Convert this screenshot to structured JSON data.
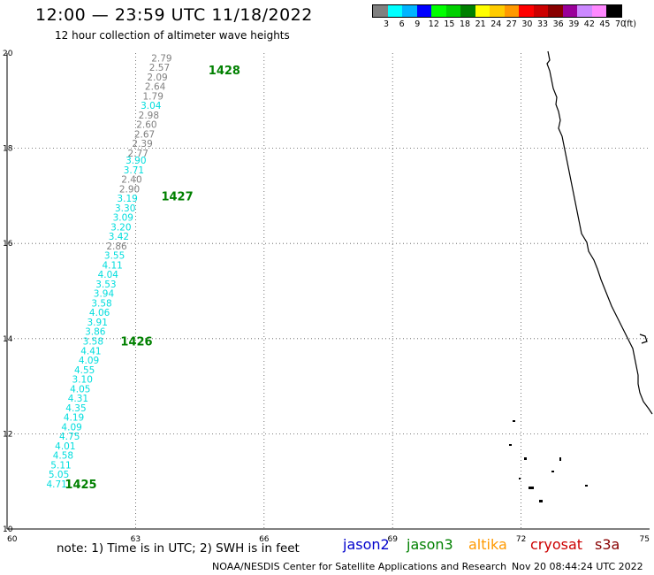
{
  "title": "12:00 — 23:59 UTC 11/18/2022",
  "subtitle": "12 hour collection of altimeter wave heights",
  "legend": {
    "colors": [
      "#808080",
      "#00ffff",
      "#00b4ff",
      "#0000ff",
      "#00ff00",
      "#00d000",
      "#008000",
      "#ffff00",
      "#ffcc00",
      "#ff9900",
      "#ff0000",
      "#cc0000",
      "#880000",
      "#990099",
      "#cc88ff",
      "#ff88ff",
      "#000000"
    ],
    "labels": [
      "3",
      "6",
      "9",
      "12",
      "15",
      "18",
      "21",
      "24",
      "27",
      "30",
      "33",
      "36",
      "39",
      "42",
      "45",
      "70"
    ],
    "unit": "(ft)"
  },
  "axes": {
    "lon_ticks": [
      "60",
      "63",
      "66",
      "69",
      "72",
      "75"
    ],
    "lat_ticks": [
      "20",
      "18",
      "16",
      "14",
      "12",
      "10"
    ]
  },
  "track": [
    {
      "v": "2.79",
      "c": "#808080",
      "lat": 19.9,
      "lon": 63.85
    },
    {
      "v": "2.57",
      "c": "#808080",
      "lat": 19.7,
      "lon": 63.8
    },
    {
      "v": "2.09",
      "c": "#808080",
      "lat": 19.5,
      "lon": 63.75
    },
    {
      "v": "2.64",
      "c": "#808080",
      "lat": 19.3,
      "lon": 63.7
    },
    {
      "v": "1.79",
      "c": "#808080",
      "lat": 19.1,
      "lon": 63.65
    },
    {
      "v": "3.04",
      "c": "#00dddd",
      "lat": 18.9,
      "lon": 63.6
    },
    {
      "v": "2.98",
      "c": "#808080",
      "lat": 18.7,
      "lon": 63.55
    },
    {
      "v": "2.60",
      "c": "#808080",
      "lat": 18.5,
      "lon": 63.5
    },
    {
      "v": "2.67",
      "c": "#808080",
      "lat": 18.3,
      "lon": 63.45
    },
    {
      "v": "2.39",
      "c": "#808080",
      "lat": 18.1,
      "lon": 63.4
    },
    {
      "v": "2.77",
      "c": "#808080",
      "lat": 17.9,
      "lon": 63.3
    },
    {
      "v": "3.90",
      "c": "#00dddd",
      "lat": 17.75,
      "lon": 63.25
    },
    {
      "v": "3.71",
      "c": "#00dddd",
      "lat": 17.55,
      "lon": 63.2
    },
    {
      "v": "2.40",
      "c": "#808080",
      "lat": 17.35,
      "lon": 63.15
    },
    {
      "v": "2.90",
      "c": "#808080",
      "lat": 17.15,
      "lon": 63.1
    },
    {
      "v": "3.19",
      "c": "#00dddd",
      "lat": 16.95,
      "lon": 63.05
    },
    {
      "v": "3.30",
      "c": "#00dddd",
      "lat": 16.75,
      "lon": 63.0
    },
    {
      "v": "3.09",
      "c": "#00dddd",
      "lat": 16.55,
      "lon": 62.95
    },
    {
      "v": "3.20",
      "c": "#00dddd",
      "lat": 16.35,
      "lon": 62.9
    },
    {
      "v": "3.42",
      "c": "#00dddd",
      "lat": 16.15,
      "lon": 62.85
    },
    {
      "v": "2.86",
      "c": "#808080",
      "lat": 15.95,
      "lon": 62.8
    },
    {
      "v": "3.55",
      "c": "#00dddd",
      "lat": 15.75,
      "lon": 62.75
    },
    {
      "v": "4.11",
      "c": "#00dddd",
      "lat": 15.55,
      "lon": 62.7
    },
    {
      "v": "4.04",
      "c": "#00dddd",
      "lat": 15.35,
      "lon": 62.6
    },
    {
      "v": "3.53",
      "c": "#00dddd",
      "lat": 15.15,
      "lon": 62.55
    },
    {
      "v": "3.94",
      "c": "#00dddd",
      "lat": 14.95,
      "lon": 62.5
    },
    {
      "v": "3.58",
      "c": "#00dddd",
      "lat": 14.75,
      "lon": 62.45
    },
    {
      "v": "4.06",
      "c": "#00dddd",
      "lat": 14.55,
      "lon": 62.4
    },
    {
      "v": "3.91",
      "c": "#00dddd",
      "lat": 14.35,
      "lon": 62.35
    },
    {
      "v": "3.86",
      "c": "#00dddd",
      "lat": 14.15,
      "lon": 62.3
    },
    {
      "v": "3.58",
      "c": "#00dddd",
      "lat": 13.95,
      "lon": 62.25
    },
    {
      "v": "4.41",
      "c": "#00dddd",
      "lat": 13.75,
      "lon": 62.2
    },
    {
      "v": "4.09",
      "c": "#00dddd",
      "lat": 13.55,
      "lon": 62.15
    },
    {
      "v": "4.55",
      "c": "#00dddd",
      "lat": 13.35,
      "lon": 62.05
    },
    {
      "v": "3.10",
      "c": "#00dddd",
      "lat": 13.15,
      "lon": 62.0
    },
    {
      "v": "4.05",
      "c": "#00dddd",
      "lat": 12.95,
      "lon": 61.95
    },
    {
      "v": "4.31",
      "c": "#00dddd",
      "lat": 12.75,
      "lon": 61.9
    },
    {
      "v": "4.35",
      "c": "#00dddd",
      "lat": 12.55,
      "lon": 61.85
    },
    {
      "v": "4.19",
      "c": "#00dddd",
      "lat": 12.35,
      "lon": 61.8
    },
    {
      "v": "4.09",
      "c": "#00dddd",
      "lat": 12.15,
      "lon": 61.75
    },
    {
      "v": "4.75",
      "c": "#00dddd",
      "lat": 11.95,
      "lon": 61.7
    },
    {
      "v": "4.01",
      "c": "#00dddd",
      "lat": 11.75,
      "lon": 61.6
    },
    {
      "v": "4.58",
      "c": "#00dddd",
      "lat": 11.55,
      "lon": 61.55
    },
    {
      "v": "5.11",
      "c": "#00dddd",
      "lat": 11.35,
      "lon": 61.5
    },
    {
      "v": "5.05",
      "c": "#00dddd",
      "lat": 11.15,
      "lon": 61.45
    },
    {
      "v": "4.71",
      "c": "#00dddd",
      "lat": 10.95,
      "lon": 61.4
    }
  ],
  "times": [
    {
      "t": "1428",
      "lat": 19.65,
      "lon": 64.7
    },
    {
      "t": "1427",
      "lat": 17.0,
      "lon": 63.6
    },
    {
      "t": "1426",
      "lat": 13.95,
      "lon": 62.65
    },
    {
      "t": "1425",
      "lat": 10.95,
      "lon": 61.35
    }
  ],
  "note": "note:  1) Time is in UTC;  2) SWH is in feet",
  "satellites": [
    {
      "name": "jason2",
      "color": "#0000cc"
    },
    {
      "name": "jason3",
      "color": "#008000"
    },
    {
      "name": "altika",
      "color": "#ff9900"
    },
    {
      "name": "cryosat",
      "color": "#cc0000"
    },
    {
      "name": "s3a",
      "color": "#880000"
    }
  ],
  "credit": "NOAA/NESDIS Center for Satellite Applications and Research",
  "timestamp": "Nov 20 08:44:24 UTC 2022"
}
